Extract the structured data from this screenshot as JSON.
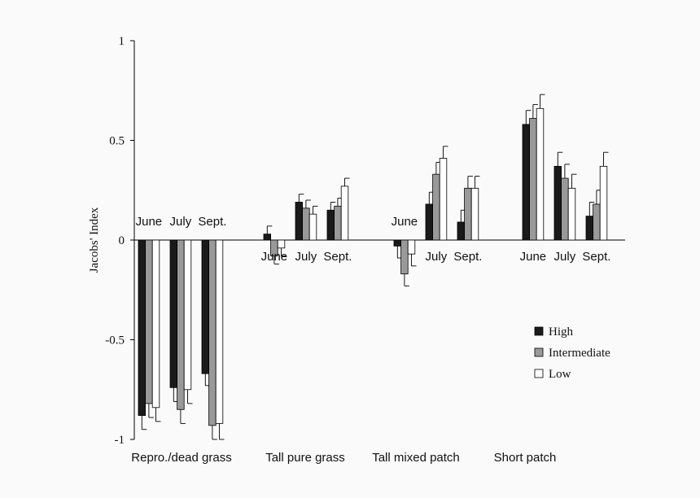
{
  "chart_data": {
    "type": "bar",
    "ylabel": "Jacobs' Index",
    "ylim": [
      -1,
      1
    ],
    "yticks": [
      1,
      0.5,
      0,
      -0.5,
      -1
    ],
    "ytick_labels": [
      "1",
      "0.5",
      "0",
      "-0.5",
      "-1"
    ],
    "grid": false,
    "legend_position": "right",
    "series": [
      {
        "name": "High",
        "color": "#1a1a1a"
      },
      {
        "name": "Intermediate",
        "color": "#999999"
      },
      {
        "name": "Low",
        "color": "#ffffff"
      }
    ],
    "groups": [
      {
        "label": "Repro./dead grass",
        "months": [
          {
            "month": "June",
            "values": [
              -0.88,
              -0.82,
              -0.84
            ],
            "errors": [
              0.07,
              0.07,
              0.07
            ]
          },
          {
            "month": "July",
            "values": [
              -0.74,
              -0.85,
              -0.75
            ],
            "errors": [
              0.07,
              0.07,
              0.07
            ]
          },
          {
            "month": "Sept.",
            "values": [
              -0.67,
              -0.93,
              -0.92
            ],
            "errors": [
              0.06,
              0.07,
              0.08
            ]
          }
        ]
      },
      {
        "label": "Tall pure grass",
        "months": [
          {
            "month": "June",
            "values": [
              0.03,
              -0.08,
              -0.04
            ],
            "errors": [
              0.04,
              0.04,
              0.04
            ]
          },
          {
            "month": "July",
            "values": [
              0.19,
              0.16,
              0.13
            ],
            "errors": [
              0.04,
              0.04,
              0.04
            ]
          },
          {
            "month": "Sept.",
            "values": [
              0.15,
              0.17,
              0.27
            ],
            "errors": [
              0.04,
              0.04,
              0.04
            ]
          }
        ]
      },
      {
        "label": "Tall mixed patch",
        "months": [
          {
            "month": "June",
            "values": [
              -0.03,
              -0.17,
              -0.07
            ],
            "errors": [
              0.06,
              0.06,
              0.06
            ]
          },
          {
            "month": "July",
            "values": [
              0.18,
              0.33,
              0.41
            ],
            "errors": [
              0.06,
              0.06,
              0.06
            ]
          },
          {
            "month": "Sept.",
            "values": [
              0.09,
              0.26,
              0.26
            ],
            "errors": [
              0.06,
              0.06,
              0.06
            ]
          }
        ]
      },
      {
        "label": "Short patch",
        "months": [
          {
            "month": "June",
            "values": [
              0.58,
              0.61,
              0.66
            ],
            "errors": [
              0.07,
              0.07,
              0.07
            ]
          },
          {
            "month": "July",
            "values": [
              0.37,
              0.31,
              0.26
            ],
            "errors": [
              0.07,
              0.07,
              0.07
            ]
          },
          {
            "month": "Sept.",
            "values": [
              0.12,
              0.18,
              0.37
            ],
            "errors": [
              0.07,
              0.07,
              0.07
            ]
          }
        ]
      }
    ]
  }
}
